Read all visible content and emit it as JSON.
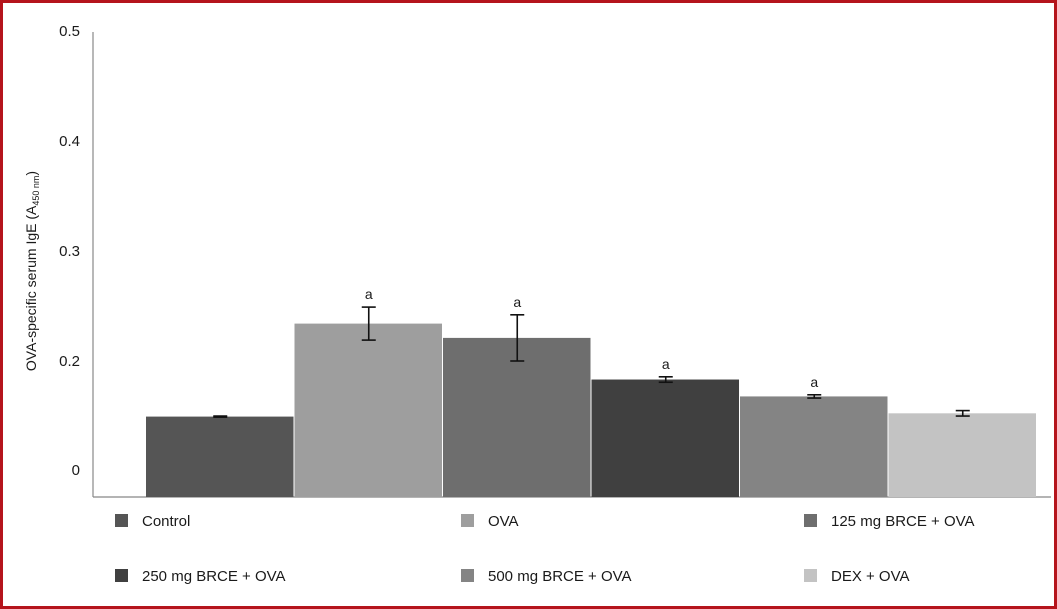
{
  "chart_data": {
    "type": "bar",
    "title": "",
    "xlabel": "",
    "ylabel": {
      "main": "OVA-specific serum IgE (A",
      "sub": "450 nm",
      "close": ")"
    },
    "ylim": [
      0,
      0.5
    ],
    "y_ticks": [
      {
        "value": 0,
        "label": "0"
      },
      {
        "value": 0.2,
        "label": "0.2"
      },
      {
        "value": 0.3,
        "label": "0.3"
      },
      {
        "value": 0.4,
        "label": "0.4"
      },
      {
        "value": 0.5,
        "label": "0.5"
      }
    ],
    "grid": false,
    "legend_position": "bottom",
    "categories": [
      "Control",
      "OVA",
      "125 mg BRCE + OVA",
      "250 mg BRCE + OVA",
      "500 mg BRCE + OVA",
      "DEX + OVA"
    ],
    "values": [
      0.098,
      0.234,
      0.221,
      0.166,
      0.135,
      0.104
    ],
    "errors": [
      0.001,
      0.015,
      0.021,
      0.005,
      0.003,
      0.005
    ],
    "annotations": [
      "",
      "a",
      "a",
      "a",
      "a",
      ""
    ],
    "colors": [
      "#555555",
      "#9e9e9e",
      "#6e6e6e",
      "#404040",
      "#848484",
      "#c3c3c3"
    ]
  }
}
